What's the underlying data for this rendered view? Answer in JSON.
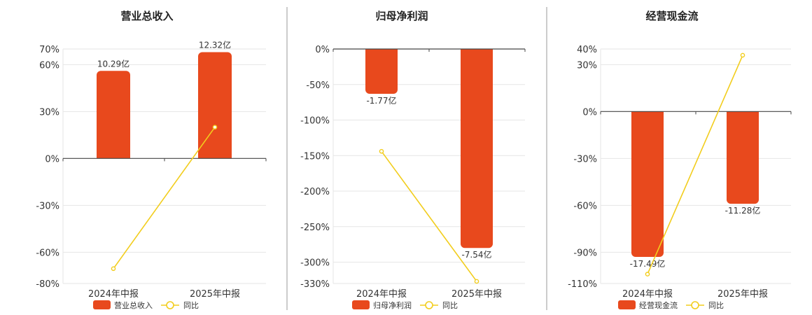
{
  "colors": {
    "bar": "#e8491d",
    "line": "#f2cd1d",
    "axis": "#444444",
    "grid": "#e6e6e6",
    "divider": "#999999"
  },
  "chart_data": [
    {
      "type": "bar",
      "title": "营业总收入",
      "categories": [
        "2024年中报",
        "2025年中报"
      ],
      "axis": {
        "min": -80,
        "max": 70,
        "ticks": [
          70,
          60,
          30,
          0,
          -30,
          -60,
          -80
        ],
        "tick_labels": [
          "70%",
          "60%",
          "30%",
          "0%",
          "-30%",
          "-60%",
          "-80%"
        ]
      },
      "bar_series": {
        "name": "营业总收入",
        "values": [
          56,
          68
        ],
        "labels": [
          "10.29亿",
          "12.32亿"
        ]
      },
      "line_series": {
        "name": "同比",
        "values": [
          -70.5,
          20
        ]
      },
      "legend": {
        "bar": "营业总收入",
        "line": "同比"
      }
    },
    {
      "type": "bar",
      "title": "归母净利润",
      "categories": [
        "2024年中报",
        "2025年中报"
      ],
      "axis": {
        "min": -330,
        "max": 0,
        "ticks": [
          0,
          -50,
          -100,
          -150,
          -200,
          -250,
          -300,
          -330
        ],
        "tick_labels": [
          "0%",
          "-50%",
          "-100%",
          "-150%",
          "-200%",
          "-250%",
          "-300%",
          "-330%"
        ]
      },
      "bar_series": {
        "name": "归母净利润",
        "values": [
          -63,
          -280
        ],
        "labels": [
          "-1.77亿",
          "-7.54亿"
        ]
      },
      "line_series": {
        "name": "同比",
        "values": [
          -144,
          -327
        ]
      },
      "legend": {
        "bar": "归母净利润",
        "line": "同比"
      }
    },
    {
      "type": "bar",
      "title": "经营现金流",
      "categories": [
        "2024年中报",
        "2025年中报"
      ],
      "axis": {
        "min": -110,
        "max": 40,
        "ticks": [
          40,
          30,
          0,
          -30,
          -60,
          -90,
          -110
        ],
        "tick_labels": [
          "40%",
          "30%",
          "0%",
          "-30%",
          "-60%",
          "-90%",
          "-110%"
        ]
      },
      "bar_series": {
        "name": "经营现金流",
        "values": [
          -93,
          -59
        ],
        "labels": [
          "-17.49亿",
          "-11.28亿"
        ]
      },
      "line_series": {
        "name": "同比",
        "values": [
          -104,
          36
        ]
      },
      "legend": {
        "bar": "经营现金流",
        "line": "同比"
      }
    }
  ]
}
